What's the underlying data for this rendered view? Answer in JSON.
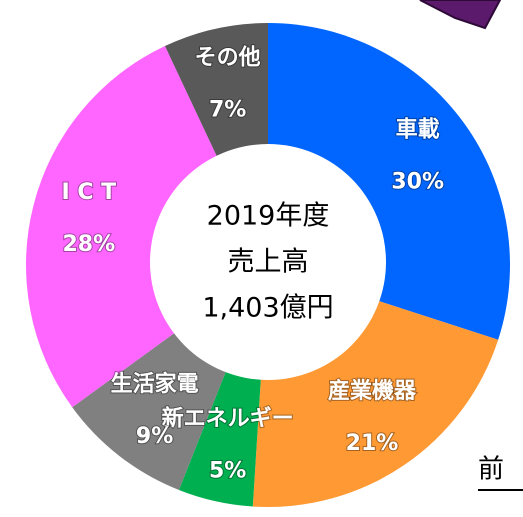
{
  "chart_data": {
    "type": "donut",
    "categories": [
      "車載",
      "産業機器",
      "新エネルギー",
      "生活家電",
      "I C T",
      "その他"
    ],
    "values": [
      30,
      21,
      5,
      9,
      28,
      7
    ],
    "value_labels": [
      "30%",
      "21%",
      "5%",
      "9%",
      "28%",
      "7%"
    ],
    "colors": [
      "#0066ff",
      "#ff9933",
      "#00b050",
      "#808080",
      "#ff66ff",
      "#595959"
    ],
    "center_label": [
      "2019年度",
      "売上高",
      "1,403億円"
    ]
  },
  "side_text": "前"
}
